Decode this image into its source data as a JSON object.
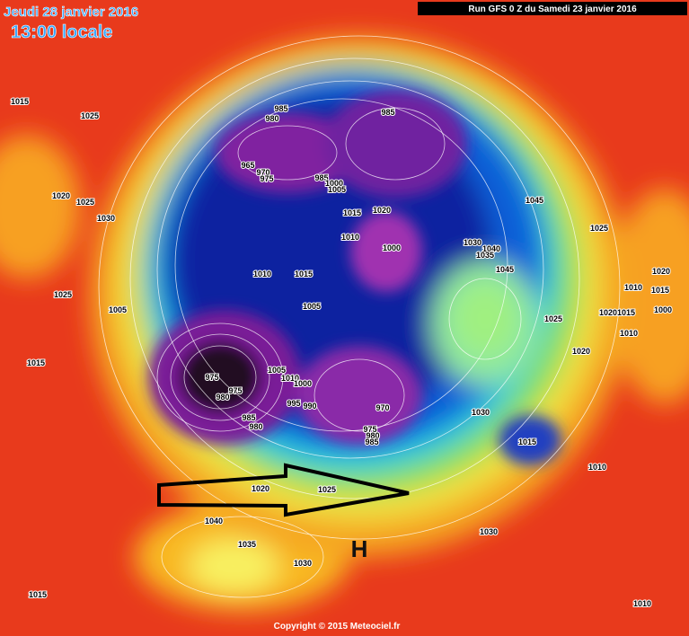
{
  "header": {
    "date": "Jeudi 28 janvier 2016",
    "time": "13:00 locale",
    "run": "Run GFS 0 Z du Samedi 23 janvier 2016"
  },
  "isobar_labels": [
    1015,
    1025,
    985,
    980,
    985,
    965,
    970,
    975,
    985,
    1000,
    1005,
    1015,
    1020,
    1045,
    1020,
    1025,
    1030,
    1025,
    1030,
    1040,
    1035,
    1045,
    1010,
    1000,
    1010,
    1015,
    1005,
    1025,
    1005,
    1020,
    1010,
    1015,
    1020,
    1015,
    1000,
    1025,
    1010,
    1020,
    1015,
    975,
    975,
    980,
    1005,
    1010,
    1000,
    995,
    990,
    970,
    1030,
    985,
    980,
    975,
    980,
    985,
    1015,
    1010,
    1020,
    1025,
    1040,
    1030,
    1035,
    1030,
    1015,
    1010
  ],
  "high_marker": "H",
  "copyright": "Copyright © 2015 Meteociel.fr"
}
